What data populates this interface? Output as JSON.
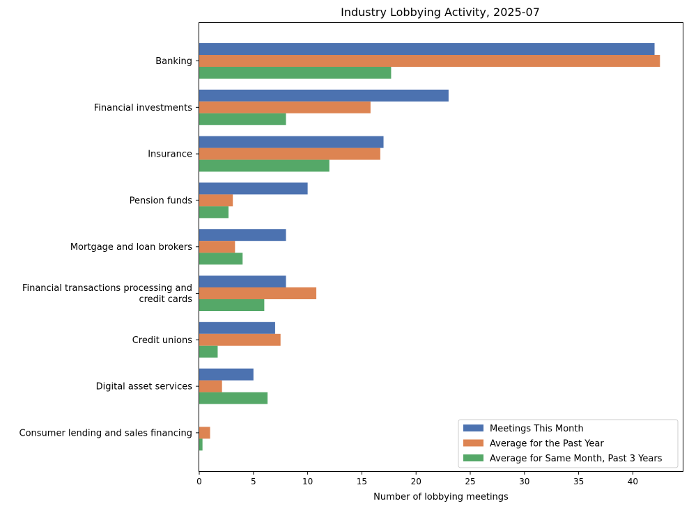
{
  "chart_data": {
    "type": "bar",
    "orientation": "horizontal",
    "title": "Industry Lobbying Activity, 2025-07",
    "xlabel": "Number of lobbying meetings",
    "ylabel": "",
    "xlim": [
      0,
      44.6
    ],
    "xticks": [
      0,
      5,
      10,
      15,
      20,
      25,
      30,
      35,
      40
    ],
    "categories": [
      [
        "Banking"
      ],
      [
        "Financial investments"
      ],
      [
        "Insurance"
      ],
      [
        "Pension funds"
      ],
      [
        "Mortgage and loan brokers"
      ],
      [
        "Financial transactions processing and",
        "credit cards"
      ],
      [
        "Credit unions"
      ],
      [
        "Digital asset services"
      ],
      [
        "Consumer lending and sales financing"
      ]
    ],
    "series": [
      {
        "name": "Meetings This Month",
        "color": "#4c72b0",
        "values": [
          42,
          23,
          17,
          10,
          8,
          8,
          7,
          5,
          0
        ]
      },
      {
        "name": "Average for the Past Year",
        "color": "#dd8452",
        "values": [
          42.5,
          15.8,
          16.7,
          3.1,
          3.3,
          10.8,
          7.5,
          2.1,
          1.0
        ]
      },
      {
        "name": "Average for Same Month, Past 3 Years",
        "color": "#55a868",
        "values": [
          17.7,
          8.0,
          12.0,
          2.7,
          4.0,
          6.0,
          1.7,
          6.3,
          0.3
        ]
      }
    ],
    "legend_position": "bottom-right",
    "grid": false
  }
}
